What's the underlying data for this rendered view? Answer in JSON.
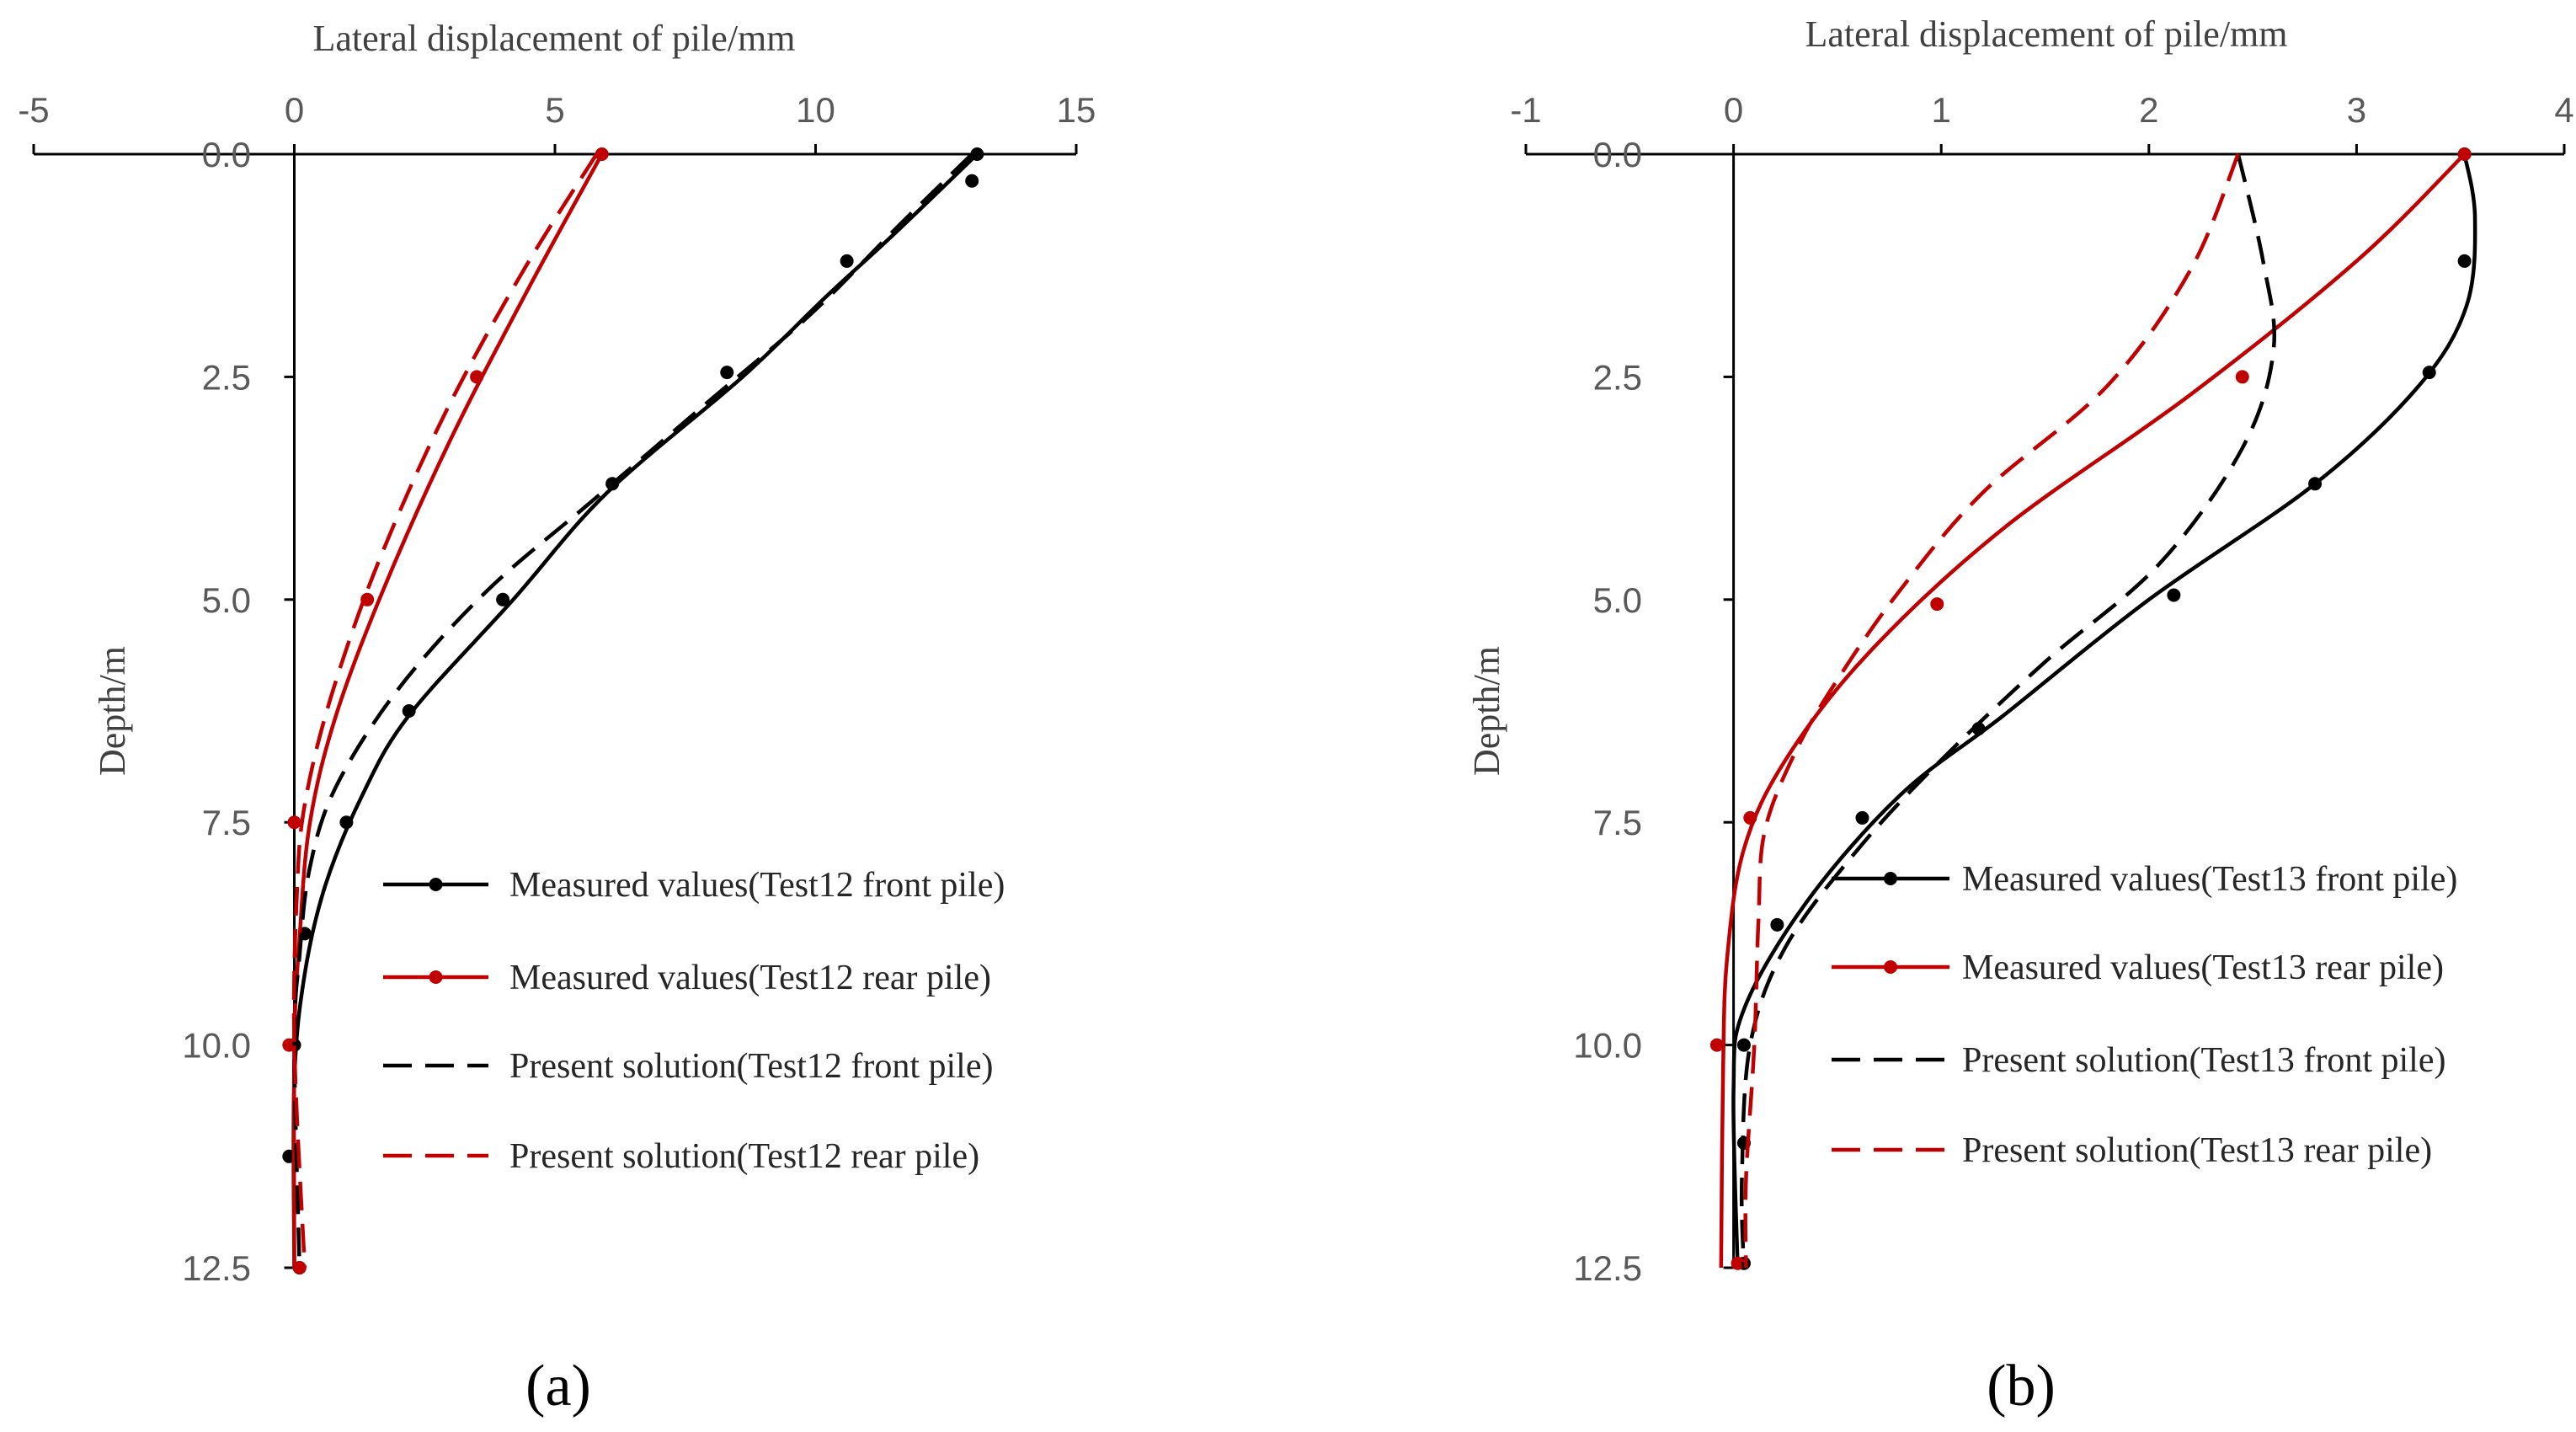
{
  "chart_data": [
    {
      "id": "a",
      "type": "line",
      "panel_label": "(a)",
      "xlabel": "Lateral displacement of pile/mm",
      "ylabel": "Depth/m",
      "xlim": [
        -5,
        15
      ],
      "ylim": [
        0,
        12.5
      ],
      "y_inverted": true,
      "x_axis_position": "top",
      "xticks": [
        -5,
        0,
        5,
        10,
        15
      ],
      "xtick_labels": [
        "-5",
        "0",
        "5",
        "10",
        "15"
      ],
      "yticks": [
        0,
        2.5,
        5,
        7.5,
        10,
        12.5
      ],
      "ytick_labels": [
        "0.0",
        "2.5",
        "5.0",
        "7.5",
        "10.0",
        "12.5"
      ],
      "legend_position": "bottom-right",
      "series": [
        {
          "name": "Measured values(Test12 front pile)",
          "color": "#000000",
          "dash": false,
          "markers": true,
          "points": [
            [
              13.1,
              0
            ],
            [
              13.0,
              0.3
            ],
            [
              10.6,
              1.2
            ],
            [
              8.3,
              2.45
            ],
            [
              6.1,
              3.7
            ],
            [
              4.0,
              5.0
            ],
            [
              2.2,
              6.25
            ],
            [
              1.0,
              7.5
            ],
            [
              0.2,
              8.75
            ],
            [
              0.0,
              10.0
            ],
            [
              -0.1,
              11.25
            ],
            [
              0.1,
              12.5
            ]
          ],
          "curve": [
            [
              13.1,
              0
            ],
            [
              11.5,
              0.9
            ],
            [
              10.2,
              1.6
            ],
            [
              8.6,
              2.5
            ],
            [
              6.0,
              3.8
            ],
            [
              4.2,
              5.0
            ],
            [
              2.2,
              6.3
            ],
            [
              1.3,
              7.2
            ],
            [
              0.6,
              8.2
            ],
            [
              0.2,
              9.2
            ],
            [
              0.0,
              10.4
            ],
            [
              0.0,
              12.5
            ]
          ]
        },
        {
          "name": "Measured values(Test12 rear pile)",
          "color": "#c00000",
          "dash": false,
          "markers": true,
          "points": [
            [
              5.9,
              0
            ],
            [
              3.5,
              2.5
            ],
            [
              1.4,
              5.0
            ],
            [
              0.0,
              7.5
            ],
            [
              -0.1,
              10.0
            ],
            [
              0.1,
              12.5
            ]
          ],
          "curve": [
            [
              5.9,
              0
            ],
            [
              4.5,
              1.5
            ],
            [
              3.0,
              3.2
            ],
            [
              1.7,
              4.9
            ],
            [
              0.8,
              6.3
            ],
            [
              0.3,
              7.5
            ],
            [
              0.1,
              8.8
            ],
            [
              0.0,
              10.0
            ],
            [
              0.0,
              12.5
            ]
          ]
        },
        {
          "name": "Present solution(Test12 front pile)",
          "color": "#000000",
          "dash": true,
          "markers": false,
          "points": [],
          "curve": [
            [
              13.0,
              0
            ],
            [
              11.6,
              0.8
            ],
            [
              9.9,
              1.8
            ],
            [
              7.9,
              2.8
            ],
            [
              5.7,
              3.9
            ],
            [
              3.7,
              4.9
            ],
            [
              2.0,
              6.0
            ],
            [
              0.8,
              7.1
            ],
            [
              0.3,
              8.0
            ],
            [
              0.1,
              9.0
            ],
            [
              0.0,
              10.0
            ],
            [
              0.1,
              12.5
            ]
          ]
        },
        {
          "name": "Present solution(Test12 rear pile)",
          "color": "#c00000",
          "dash": true,
          "markers": false,
          "points": [],
          "curve": [
            [
              5.8,
              0
            ],
            [
              4.4,
              1.3
            ],
            [
              2.9,
              2.9
            ],
            [
              1.6,
              4.6
            ],
            [
              0.7,
              6.1
            ],
            [
              0.2,
              7.3
            ],
            [
              0.05,
              8.3
            ],
            [
              0.0,
              10.0
            ],
            [
              0.2,
              12.5
            ]
          ]
        }
      ]
    },
    {
      "id": "b",
      "type": "line",
      "panel_label": "(b)",
      "xlabel": "Lateral displacement of pile/mm",
      "ylabel": "Depth/m",
      "xlim": [
        -1,
        4
      ],
      "ylim": [
        0,
        12.5
      ],
      "y_inverted": true,
      "x_axis_position": "top",
      "xticks": [
        -1,
        0,
        1,
        2,
        3,
        4
      ],
      "xtick_labels": [
        "-1",
        "0",
        "1",
        "2",
        "3",
        "4"
      ],
      "yticks": [
        0,
        2.5,
        5,
        7.5,
        10,
        12.5
      ],
      "ytick_labels": [
        "0.0",
        "2.5",
        "5.0",
        "7.5",
        "10.0",
        "12.5"
      ],
      "legend_position": "bottom-right",
      "series": [
        {
          "name": "Measured values(Test13 front pile)",
          "color": "#000000",
          "dash": false,
          "markers": true,
          "points": [
            [
              3.52,
              0
            ],
            [
              3.52,
              1.2
            ],
            [
              3.35,
              2.45
            ],
            [
              2.8,
              3.7
            ],
            [
              2.12,
              4.95
            ],
            [
              1.18,
              6.45
            ],
            [
              0.62,
              7.45
            ],
            [
              0.21,
              8.65
            ],
            [
              0.05,
              10.0
            ],
            [
              0.05,
              11.1
            ],
            [
              0.05,
              12.45
            ]
          ],
          "curve": [
            [
              3.52,
              0
            ],
            [
              3.57,
              0.7
            ],
            [
              3.53,
              1.7
            ],
            [
              3.3,
              2.6
            ],
            [
              2.8,
              3.7
            ],
            [
              2.0,
              5.0
            ],
            [
              1.3,
              6.3
            ],
            [
              0.8,
              7.2
            ],
            [
              0.35,
              8.4
            ],
            [
              0.05,
              9.6
            ],
            [
              0.0,
              10.5
            ],
            [
              0.02,
              12.5
            ]
          ]
        },
        {
          "name": "Measured values(Test13 rear pile)",
          "color": "#c00000",
          "dash": false,
          "markers": true,
          "points": [
            [
              3.52,
              0
            ],
            [
              2.45,
              2.5
            ],
            [
              0.98,
              5.05
            ],
            [
              0.08,
              7.45
            ],
            [
              -0.08,
              10.0
            ],
            [
              0.02,
              12.45
            ]
          ],
          "curve": [
            [
              3.52,
              0
            ],
            [
              3.0,
              1.2
            ],
            [
              2.2,
              2.7
            ],
            [
              1.3,
              4.2
            ],
            [
              0.65,
              5.6
            ],
            [
              0.25,
              6.8
            ],
            [
              0.05,
              7.8
            ],
            [
              -0.03,
              9.0
            ],
            [
              -0.05,
              10.2
            ],
            [
              -0.06,
              12.5
            ]
          ]
        },
        {
          "name": "Present solution(Test13 front pile)",
          "color": "#000000",
          "dash": true,
          "markers": false,
          "points": [],
          "curve": [
            [
              2.43,
              0
            ],
            [
              2.55,
              1.2
            ],
            [
              2.6,
              2.2
            ],
            [
              2.45,
              3.3
            ],
            [
              2.05,
              4.6
            ],
            [
              1.5,
              5.7
            ],
            [
              1.0,
              6.8
            ],
            [
              0.6,
              7.8
            ],
            [
              0.25,
              8.9
            ],
            [
              0.08,
              10.0
            ],
            [
              0.04,
              11.5
            ],
            [
              0.05,
              12.5
            ]
          ]
        },
        {
          "name": "Present solution(Test13 rear pile)",
          "color": "#c00000",
          "dash": true,
          "markers": false,
          "points": [],
          "curve": [
            [
              2.43,
              0
            ],
            [
              2.2,
              1.3
            ],
            [
              1.8,
              2.6
            ],
            [
              1.2,
              3.8
            ],
            [
              0.8,
              4.9
            ],
            [
              0.5,
              5.9
            ],
            [
              0.3,
              6.7
            ],
            [
              0.15,
              7.6
            ],
            [
              0.12,
              8.6
            ],
            [
              0.1,
              10.0
            ],
            [
              0.06,
              11.5
            ],
            [
              0.06,
              12.5
            ]
          ]
        }
      ]
    }
  ]
}
